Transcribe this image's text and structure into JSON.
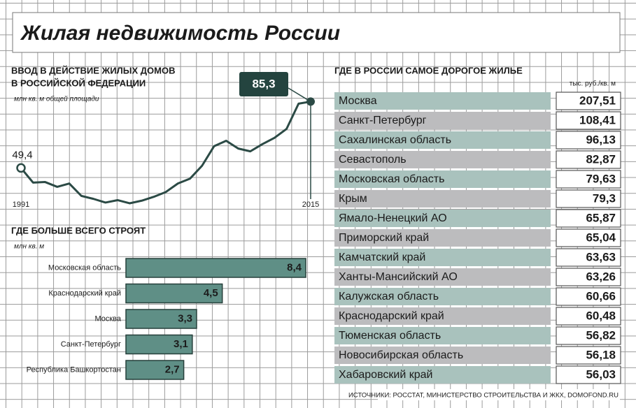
{
  "title": "Жилая недвижимость России",
  "chart_data": [
    {
      "type": "line",
      "title": [
        "ВВОД В ДЕЙСТВИЕ ЖИЛЫХ ДОМОВ",
        "В РОССИЙСКОЙ ФЕДЕРАЦИИ"
      ],
      "subtitle": "млн кв. м общей площади",
      "x": [
        1991,
        1992,
        1993,
        1994,
        1995,
        1996,
        1997,
        1998,
        1999,
        2000,
        2001,
        2002,
        2003,
        2004,
        2005,
        2006,
        2007,
        2008,
        2009,
        2010,
        2011,
        2012,
        2013,
        2014,
        2015
      ],
      "values": [
        49.4,
        41.5,
        41.8,
        39.2,
        41.0,
        34.3,
        32.7,
        30.7,
        32.0,
        30.3,
        31.7,
        33.8,
        36.4,
        41.0,
        43.6,
        50.6,
        61.2,
        64.1,
        59.9,
        58.4,
        62.3,
        65.7,
        70.5,
        84.2,
        85.3
      ],
      "value_labels": [
        "49,4",
        null,
        null,
        null,
        null,
        null,
        null,
        null,
        null,
        null,
        null,
        null,
        null,
        null,
        null,
        null,
        null,
        null,
        null,
        null,
        null,
        null,
        null,
        null,
        "85,3"
      ],
      "xlim": [
        1991,
        2015
      ],
      "xticks": [
        1991,
        2015
      ],
      "ylim": [
        25,
        90
      ],
      "color": "#2b4a45"
    },
    {
      "type": "bar",
      "orientation": "horizontal",
      "title": "ГДЕ БОЛЬШЕ ВСЕГО СТРОЯТ",
      "subtitle": "млн кв. м",
      "categories": [
        "Московская область",
        "Краснодарский край",
        "Москва",
        "Санкт-Петербург",
        "Республика Башкортостан"
      ],
      "values": [
        8.4,
        4.5,
        3.3,
        3.1,
        2.7
      ],
      "value_labels": [
        "8,4",
        "4,5",
        "3,3",
        "3,1",
        "2,7"
      ],
      "xlim": [
        0,
        10
      ],
      "color": "#5f8f86"
    }
  ],
  "table": {
    "title": "ГДЕ В РОССИИ САМОЕ ДОРОГОЕ ЖИЛЬЕ",
    "unit": "тыс. руб./кв. м",
    "rows": [
      [
        "Москва",
        "207,51"
      ],
      [
        "Санкт-Петербург",
        "108,41"
      ],
      [
        "Сахалинская область",
        "96,13"
      ],
      [
        "Севастополь",
        "82,87"
      ],
      [
        "Московская область",
        "79,63"
      ],
      [
        "Крым",
        "79,3"
      ],
      [
        "Ямало-Ненецкий АО",
        "65,87"
      ],
      [
        "Приморский край",
        "65,04"
      ],
      [
        "Камчатский край",
        "63,63"
      ],
      [
        "Ханты-Мансийский АО",
        "63,26"
      ],
      [
        "Калужская область",
        "60,66"
      ],
      [
        "Краснодарский край",
        "60,48"
      ],
      [
        "Тюменская область",
        "56,82"
      ],
      [
        "Новосибирская область",
        "56,18"
      ],
      [
        "Хабаровский край",
        "56,03"
      ]
    ]
  },
  "sources": "ИСТОЧНИКИ: РОССТАТ, МИНИСТЕРСТВО СТРОИТЕЛЬСТВА И ЖКХ, DOMOFOND.RU"
}
